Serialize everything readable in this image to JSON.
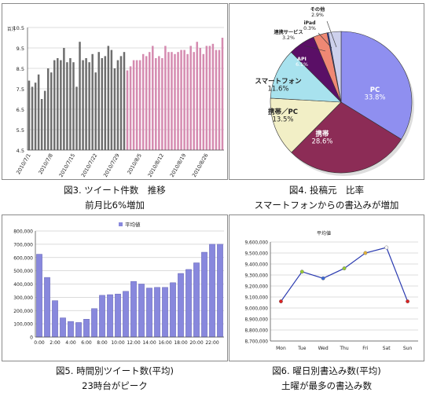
{
  "captions": {
    "fig3": {
      "title": "図3. ツイート件数　推移",
      "sub": "前月比6%増加"
    },
    "fig4": {
      "title": "図4. 投稿元　比率",
      "sub": "スマートフォンからの書込みが増加"
    },
    "fig5": {
      "title": "図5. 時間別ツイート数(平均)",
      "sub": "23時台がピーク"
    },
    "fig6": {
      "title": "図6. 曜日別書込み数(平均)",
      "sub": "土曜が最多の書込み数"
    }
  },
  "chart_data": [
    {
      "id": "fig3",
      "type": "bar",
      "ylabel": "百万",
      "ylim": [
        4.5,
        10.5
      ],
      "yticks": [
        "10.5",
        "9.5",
        "8.5",
        "7.5",
        "6.5",
        "5.5",
        "4.5"
      ],
      "xticks": [
        "2010/7/1",
        "2010/7/8",
        "2010/7/15",
        "2010/7/22",
        "2010/7/29",
        "2010/8/5",
        "2010/8/12",
        "2010/8/19",
        "2010/8/26"
      ],
      "grid": true,
      "series": [
        {
          "color": "#6e6e6e",
          "values": [
            7.9,
            7.6,
            7.8,
            8.2,
            7.0,
            7.4,
            8.5,
            8.3,
            8.9,
            9.0,
            8.9,
            9.5,
            8.8,
            9.0,
            8.8,
            7.6,
            9.8,
            8.9,
            9.0,
            8.8,
            9.2,
            8.3,
            9.3,
            9.0,
            9.1,
            9.6,
            9.4,
            8.5,
            8.9,
            9.1,
            9.3
          ]
        },
        {
          "color": "#d58bb0",
          "values": [
            8.4,
            8.6,
            8.9,
            8.9,
            8.9,
            9.2,
            9.1,
            9.3,
            9.6,
            9.0,
            9.1,
            9.0,
            9.6,
            9.3,
            9.3,
            9.2,
            9.3,
            9.4,
            9.4,
            9.2,
            9.6,
            9.3,
            9.8,
            9.5,
            9.2,
            9.6,
            9.6,
            9.7,
            9.4,
            9.4,
            10.0
          ]
        }
      ]
    },
    {
      "id": "fig4",
      "type": "pie",
      "slices": [
        {
          "label": "PC",
          "value": 33.8,
          "display": "33.8%",
          "color": "#8f8ff0"
        },
        {
          "label": "携帯",
          "value": 28.6,
          "display": "28.6%",
          "color": "#8c2c56"
        },
        {
          "label": "携帯／PC",
          "value": 13.5,
          "display": "13.5%",
          "color": "#f2efc6"
        },
        {
          "label": "スマートフォン",
          "value": 11.6,
          "display": "11.6%",
          "color": "#a8e2ee"
        },
        {
          "label": "API",
          "value": 6.1,
          "display": "6.1%",
          "color": "#5a0f66"
        },
        {
          "label": "連携サービス",
          "value": 3.2,
          "display": "3.2%",
          "color": "#ef8874"
        },
        {
          "label": "iPad",
          "value": 0.3,
          "display": "0.3%",
          "color": "#2d3ca8"
        },
        {
          "label": "その他",
          "value": 2.9,
          "display": "2.9%",
          "color": "#cdd0ec"
        }
      ]
    },
    {
      "id": "fig5",
      "type": "bar",
      "legend": "平均値",
      "ylim": [
        0,
        800000
      ],
      "yticks": [
        "800,000",
        "700,000",
        "600,000",
        "500,000",
        "400,000",
        "300,000",
        "200,000",
        "100,000",
        "0"
      ],
      "xticks": [
        "0:00",
        "2:00",
        "4:00",
        "6:00",
        "8:00",
        "10:00",
        "12:00",
        "14:00",
        "16:00",
        "18:00",
        "20:00",
        "22:00"
      ],
      "grid": true,
      "series": [
        {
          "name": "平均値",
          "color": "#8888dd",
          "values": [
            625000,
            450000,
            275000,
            145000,
            118000,
            110000,
            135000,
            215000,
            315000,
            320000,
            325000,
            345000,
            420000,
            400000,
            370000,
            375000,
            375000,
            410000,
            480000,
            510000,
            560000,
            640000,
            700000,
            700000
          ]
        }
      ]
    },
    {
      "id": "fig6",
      "type": "line",
      "legend": "平均値",
      "ylim": [
        8700000,
        9600000
      ],
      "yticks": [
        "9,600,000",
        "9,500,000",
        "9,400,000",
        "9,300,000",
        "9,200,000",
        "9,100,000",
        "9,000,000",
        "8,900,000",
        "8,800,000",
        "8,700,000"
      ],
      "categories": [
        "Mon",
        "Tue",
        "Wed",
        "Thu",
        "Fri",
        "Sat",
        "Sun"
      ],
      "grid": true,
      "series": [
        {
          "name": "平均値",
          "color": "#2a3ab0",
          "values": [
            9060000,
            9330000,
            9270000,
            9360000,
            9500000,
            9550000,
            9060000
          ],
          "marker_colors": [
            "#dd2222",
            "#99cc33",
            "#3a6ad8",
            "#99cc33",
            "#e3b13a",
            "#ffffff",
            "#dd2222"
          ]
        }
      ]
    }
  ]
}
